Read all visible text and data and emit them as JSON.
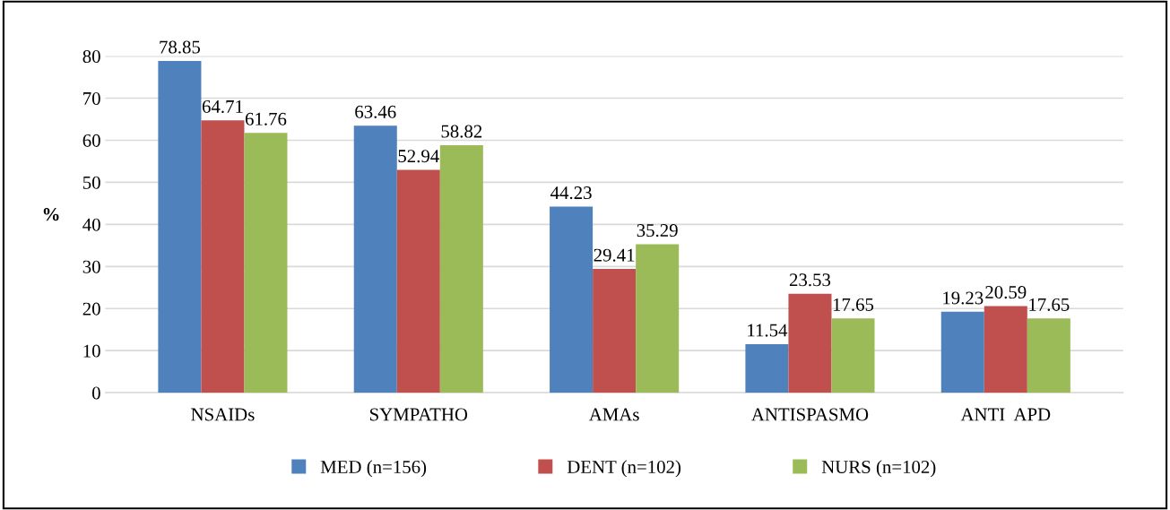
{
  "chart_data": {
    "type": "bar",
    "ylabel": "%",
    "categories": [
      "NSAIDs",
      "SYMPATHO",
      "AMAs",
      "ANTISPASMO",
      "ANTI  APD"
    ],
    "series": [
      {
        "name": "MED (n=156)",
        "color": "#4f81bd",
        "values": [
          78.85,
          63.46,
          44.23,
          11.54,
          19.23
        ]
      },
      {
        "name": "DENT (n=102)",
        "color": "#c0504d",
        "values": [
          64.71,
          52.94,
          29.41,
          23.53,
          20.59
        ]
      },
      {
        "name": "NURS (n=102)",
        "color": "#9bbb59",
        "values": [
          61.76,
          58.82,
          35.29,
          17.65,
          17.65
        ]
      }
    ],
    "ylim": [
      0,
      80
    ],
    "yticks": [
      0,
      10,
      20,
      30,
      40,
      50,
      60,
      70,
      80
    ],
    "grid": "y",
    "legend": "bottom",
    "data_labels": true
  }
}
